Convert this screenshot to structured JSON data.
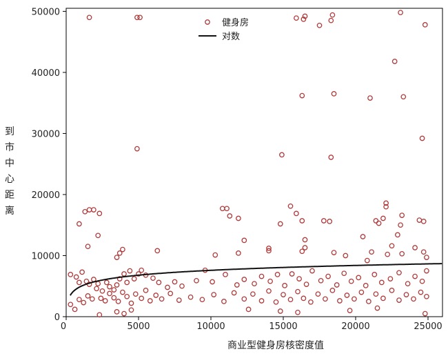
{
  "chart_data": {
    "type": "scatter",
    "xlabel": "商业型健身房核密度值",
    "ylabel": "到市中心距离",
    "xlim": [
      0,
      26000
    ],
    "ylim": [
      0,
      50500
    ],
    "xticks": [
      {
        "value": 0,
        "label": "0"
      },
      {
        "value": 5000,
        "label": "5000"
      },
      {
        "value": 10000,
        "label": "10000"
      },
      {
        "value": 15000,
        "label": "15000"
      },
      {
        "value": 20000,
        "label": "20000"
      },
      {
        "value": 25000,
        "label": "25000"
      }
    ],
    "yticks": [
      {
        "value": 0,
        "label": "0"
      },
      {
        "value": 10000,
        "label": "10000"
      },
      {
        "value": 20000,
        "label": "20000"
      },
      {
        "value": 30000,
        "label": "30000"
      },
      {
        "value": 40000,
        "label": "40000"
      },
      {
        "value": 50000,
        "label": "50000"
      }
    ],
    "grid": false,
    "legend_position": "top-center",
    "legend": [
      {
        "label": "健身房",
        "kind": "marker"
      },
      {
        "label": "对数",
        "kind": "line"
      }
    ],
    "colors": {
      "marker": "#b03a3a",
      "curve": "#111111",
      "axis": "#000000"
    },
    "fit": {
      "type": "logarithmic",
      "intercept": -3000,
      "slope": 1150
    },
    "series": [
      {
        "name": "健身房",
        "points": [
          [
            1600,
            49000
          ],
          [
            4900,
            49000
          ],
          [
            5100,
            49000
          ],
          [
            15900,
            48900
          ],
          [
            16400,
            48700
          ],
          [
            16500,
            49200
          ],
          [
            17500,
            47700
          ],
          [
            18300,
            48500
          ],
          [
            18400,
            49400
          ],
          [
            23100,
            49800
          ],
          [
            24800,
            47800
          ],
          [
            22700,
            41800
          ],
          [
            16300,
            36200
          ],
          [
            18500,
            36500
          ],
          [
            21000,
            35800
          ],
          [
            23300,
            36000
          ],
          [
            24600,
            29200
          ],
          [
            4900,
            27500
          ],
          [
            14900,
            26500
          ],
          [
            18300,
            26100
          ],
          [
            1600,
            17500
          ],
          [
            1300,
            17200
          ],
          [
            1900,
            17500
          ],
          [
            2300,
            16900
          ],
          [
            900,
            15200
          ],
          [
            1500,
            11500
          ],
          [
            2200,
            13300
          ],
          [
            10800,
            17700
          ],
          [
            11100,
            17700
          ],
          [
            11300,
            16500
          ],
          [
            11900,
            16100
          ],
          [
            15500,
            18100
          ],
          [
            14800,
            15200
          ],
          [
            15900,
            16900
          ],
          [
            16300,
            15700
          ],
          [
            17800,
            15700
          ],
          [
            18200,
            15600
          ],
          [
            21400,
            15700
          ],
          [
            21600,
            15300
          ],
          [
            21900,
            16100
          ],
          [
            22100,
            18600
          ],
          [
            22100,
            18000
          ],
          [
            23200,
            16600
          ],
          [
            24400,
            15800
          ],
          [
            24700,
            15600
          ],
          [
            23100,
            15000
          ],
          [
            22900,
            13400
          ],
          [
            16500,
            12600
          ],
          [
            16500,
            11300
          ],
          [
            16300,
            10700
          ],
          [
            12300,
            12500
          ],
          [
            14000,
            11200
          ],
          [
            14000,
            10800
          ],
          [
            20500,
            13100
          ],
          [
            22500,
            11600
          ],
          [
            3700,
            10400
          ],
          [
            3900,
            11000
          ],
          [
            3500,
            9700
          ],
          [
            6300,
            10800
          ],
          [
            10300,
            10100
          ],
          [
            11900,
            10400
          ],
          [
            18500,
            10500
          ],
          [
            19300,
            10000
          ],
          [
            21100,
            10600
          ],
          [
            22200,
            10200
          ],
          [
            23200,
            10300
          ],
          [
            24100,
            11300
          ],
          [
            24700,
            10600
          ],
          [
            24900,
            9700
          ],
          [
            20800,
            9200
          ],
          [
            300,
            6900
          ],
          [
            700,
            6500
          ],
          [
            900,
            5600
          ],
          [
            1100,
            7300
          ],
          [
            1400,
            5800
          ],
          [
            1600,
            5300
          ],
          [
            1900,
            6100
          ],
          [
            2200,
            5400
          ],
          [
            2500,
            4200
          ],
          [
            2800,
            5600
          ],
          [
            3000,
            4900
          ],
          [
            3300,
            4400
          ],
          [
            3500,
            5200
          ],
          [
            3700,
            6200
          ],
          [
            4000,
            7000
          ],
          [
            4200,
            5600
          ],
          [
            4400,
            7500
          ],
          [
            4700,
            6200
          ],
          [
            5000,
            7000
          ],
          [
            5200,
            7600
          ],
          [
            5500,
            6800
          ],
          [
            6000,
            6300
          ],
          [
            6400,
            5600
          ],
          [
            7000,
            4800
          ],
          [
            7500,
            5700
          ],
          [
            8000,
            5000
          ],
          [
            9000,
            5900
          ],
          [
            9600,
            7600
          ],
          [
            10100,
            5700
          ],
          [
            11000,
            6900
          ],
          [
            11800,
            5200
          ],
          [
            12300,
            6100
          ],
          [
            13000,
            5400
          ],
          [
            13500,
            6600
          ],
          [
            14100,
            5800
          ],
          [
            14600,
            6900
          ],
          [
            15100,
            5100
          ],
          [
            15600,
            7000
          ],
          [
            16100,
            6200
          ],
          [
            16600,
            5300
          ],
          [
            17000,
            7500
          ],
          [
            17600,
            5900
          ],
          [
            18100,
            6600
          ],
          [
            18700,
            5200
          ],
          [
            19200,
            7100
          ],
          [
            19700,
            5800
          ],
          [
            20200,
            6400
          ],
          [
            20700,
            5100
          ],
          [
            21300,
            6900
          ],
          [
            21800,
            5600
          ],
          [
            22400,
            6200
          ],
          [
            23000,
            7200
          ],
          [
            23600,
            5400
          ],
          [
            24100,
            6600
          ],
          [
            24600,
            5800
          ],
          [
            24900,
            7500
          ],
          [
            300,
            2000
          ],
          [
            600,
            1200
          ],
          [
            900,
            2800
          ],
          [
            1200,
            2300
          ],
          [
            1500,
            3400
          ],
          [
            1800,
            2900
          ],
          [
            2100,
            4600
          ],
          [
            2400,
            3000
          ],
          [
            2700,
            2600
          ],
          [
            3000,
            3800
          ],
          [
            3300,
            3100
          ],
          [
            3600,
            2500
          ],
          [
            3900,
            4000
          ],
          [
            4200,
            3300
          ],
          [
            4500,
            2200
          ],
          [
            4800,
            3700
          ],
          [
            5200,
            3000
          ],
          [
            5500,
            4300
          ],
          [
            5800,
            2600
          ],
          [
            6200,
            3500
          ],
          [
            6600,
            2900
          ],
          [
            7200,
            3800
          ],
          [
            7800,
            2700
          ],
          [
            8600,
            3200
          ],
          [
            9400,
            2800
          ],
          [
            10200,
            3600
          ],
          [
            10900,
            2500
          ],
          [
            11600,
            3900
          ],
          [
            12300,
            2900
          ],
          [
            12900,
            3700
          ],
          [
            13500,
            2600
          ],
          [
            14000,
            4200
          ],
          [
            14500,
            2400
          ],
          [
            15000,
            3600
          ],
          [
            15500,
            2800
          ],
          [
            16000,
            4100
          ],
          [
            16400,
            3000
          ],
          [
            16900,
            2400
          ],
          [
            17400,
            3700
          ],
          [
            17900,
            2900
          ],
          [
            18400,
            4300
          ],
          [
            18900,
            2600
          ],
          [
            19400,
            3500
          ],
          [
            19900,
            2900
          ],
          [
            20400,
            4000
          ],
          [
            20900,
            2500
          ],
          [
            21400,
            3700
          ],
          [
            21900,
            3000
          ],
          [
            22500,
            4300
          ],
          [
            23000,
            2700
          ],
          [
            23500,
            3600
          ],
          [
            24000,
            2900
          ],
          [
            24500,
            4000
          ],
          [
            24900,
            3300
          ],
          [
            2300,
            300
          ],
          [
            3500,
            800
          ],
          [
            4000,
            500
          ],
          [
            4500,
            1100
          ],
          [
            12600,
            1200
          ],
          [
            14800,
            900
          ],
          [
            16000,
            700
          ],
          [
            19600,
            1000
          ],
          [
            21500,
            1400
          ],
          [
            24800,
            500
          ]
        ]
      }
    ]
  }
}
